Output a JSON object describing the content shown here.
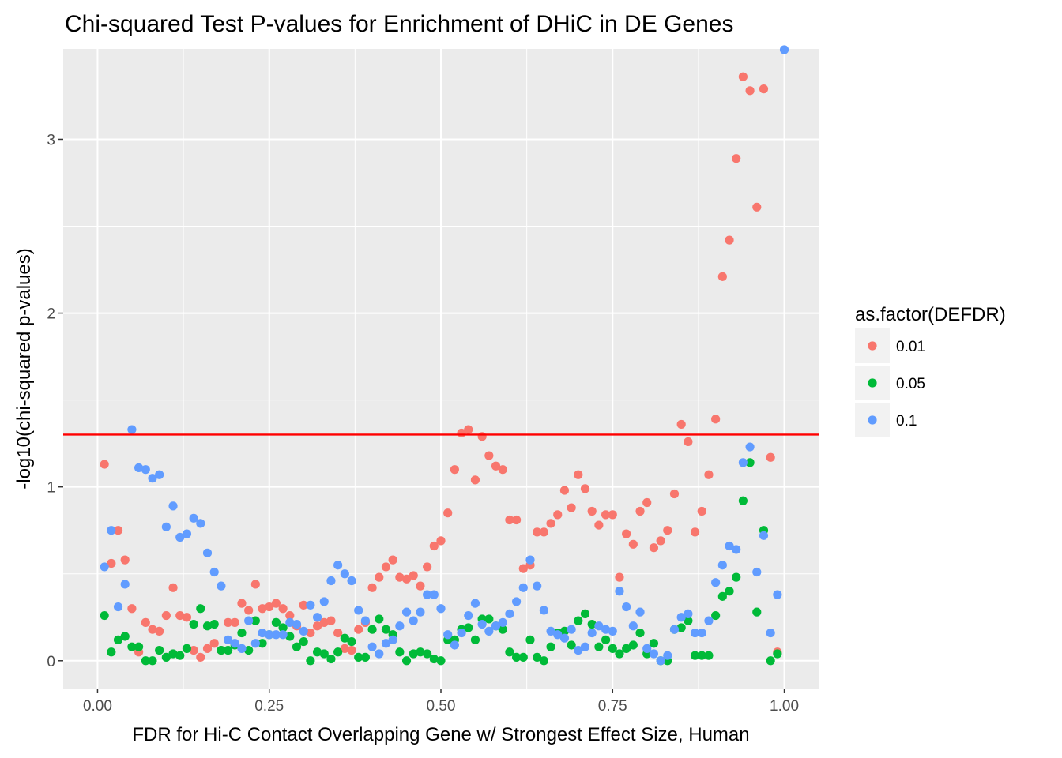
{
  "chart_data": {
    "type": "scatter",
    "title": "Chi-squared Test P-values for Enrichment of DHiC in DE Genes",
    "xlabel": "FDR for Hi-C Contact Overlapping Gene w/ Strongest Effect Size, Human",
    "ylabel": "-log10(chi-squared p-values)",
    "xlim": [
      -0.05,
      1.05
    ],
    "ylim": [
      -0.16,
      3.52
    ],
    "x_ticks": [
      0,
      0.25,
      0.5,
      0.75,
      1
    ],
    "x_tick_labels": [
      "0.00",
      "0.25",
      "0.50",
      "0.75",
      "1.00"
    ],
    "y_ticks": [
      0,
      1,
      2,
      3
    ],
    "y_tick_labels": [
      "0",
      "1",
      "2",
      "3"
    ],
    "grid": true,
    "reference_line": {
      "y": 1.301,
      "color": "#ff0000"
    },
    "legend": {
      "title": "as.factor(DEFDR)",
      "position": "right",
      "entries": [
        "0.01",
        "0.05",
        "0.1"
      ]
    },
    "colors": [
      "#F8766D",
      "#00BA38",
      "#619CFF"
    ],
    "x": [
      0.01,
      0.02,
      0.03,
      0.04,
      0.05,
      0.06,
      0.07,
      0.08,
      0.09,
      0.1,
      0.11,
      0.12,
      0.13,
      0.14,
      0.15,
      0.16,
      0.17,
      0.18,
      0.19,
      0.2,
      0.21,
      0.22,
      0.23,
      0.24,
      0.25,
      0.26,
      0.27,
      0.28,
      0.29,
      0.3,
      0.31,
      0.32,
      0.33,
      0.34,
      0.35,
      0.36,
      0.37,
      0.38,
      0.39,
      0.4,
      0.41,
      0.42,
      0.43,
      0.44,
      0.45,
      0.46,
      0.47,
      0.48,
      0.49,
      0.5,
      0.51,
      0.52,
      0.53,
      0.54,
      0.55,
      0.56,
      0.57,
      0.58,
      0.59,
      0.6,
      0.61,
      0.62,
      0.63,
      0.64,
      0.65,
      0.66,
      0.67,
      0.68,
      0.69,
      0.7,
      0.71,
      0.72,
      0.73,
      0.74,
      0.75,
      0.76,
      0.77,
      0.78,
      0.79,
      0.8,
      0.81,
      0.82,
      0.83,
      0.84,
      0.85,
      0.86,
      0.87,
      0.88,
      0.89,
      0.9,
      0.91,
      0.92,
      0.93,
      0.94,
      0.95,
      0.96,
      0.97,
      0.98,
      0.99,
      1.0
    ],
    "series": [
      {
        "name": "0.01",
        "values": [
          1.13,
          0.56,
          0.75,
          0.58,
          0.3,
          0.05,
          0.22,
          0.18,
          0.17,
          0.26,
          0.42,
          0.26,
          0.25,
          0.06,
          0.02,
          0.07,
          0.1,
          0.06,
          0.22,
          0.22,
          0.33,
          0.29,
          0.44,
          0.3,
          0.31,
          0.33,
          0.3,
          0.26,
          0.2,
          0.32,
          0.16,
          0.2,
          0.22,
          0.23,
          0.16,
          0.07,
          0.06,
          0.18,
          0.22,
          0.42,
          0.48,
          0.54,
          0.58,
          0.48,
          0.47,
          0.49,
          0.43,
          0.54,
          0.66,
          0.69,
          0.85,
          1.1,
          1.31,
          1.33,
          1.04,
          1.29,
          1.18,
          1.12,
          1.1,
          0.81,
          0.81,
          0.53,
          0.55,
          0.74,
          0.74,
          0.79,
          0.84,
          0.98,
          0.88,
          1.07,
          0.99,
          0.86,
          0.78,
          0.84,
          0.84,
          0.48,
          0.73,
          0.67,
          0.86,
          0.91,
          0.65,
          0.69,
          0.75,
          0.96,
          1.36,
          1.26,
          0.74,
          0.86,
          1.07,
          1.39,
          2.21,
          2.42,
          2.89,
          3.36,
          3.28,
          2.61,
          3.29,
          1.17,
          0.05,
          null
        ]
      },
      {
        "name": "0.05",
        "values": [
          0.26,
          0.05,
          0.12,
          0.14,
          0.08,
          0.08,
          0.0,
          0.0,
          0.06,
          0.02,
          0.04,
          0.03,
          0.07,
          0.21,
          0.3,
          0.2,
          0.21,
          0.06,
          0.06,
          0.09,
          0.16,
          0.06,
          0.23,
          0.1,
          0.15,
          0.22,
          0.19,
          0.14,
          0.08,
          0.11,
          0.0,
          0.05,
          0.04,
          0.01,
          0.05,
          0.13,
          0.11,
          0.02,
          0.02,
          0.18,
          0.24,
          0.18,
          0.15,
          0.05,
          0.0,
          0.04,
          0.05,
          0.04,
          0.01,
          0.0,
          0.12,
          0.12,
          0.18,
          0.19,
          0.12,
          0.24,
          0.24,
          0.2,
          0.18,
          0.05,
          0.02,
          0.02,
          0.12,
          0.02,
          0.0,
          0.08,
          0.16,
          0.17,
          0.09,
          0.23,
          0.27,
          0.21,
          0.08,
          0.12,
          0.07,
          0.04,
          0.07,
          0.09,
          0.16,
          0.04,
          0.1,
          0.0,
          0.0,
          0.18,
          0.19,
          0.23,
          0.03,
          0.03,
          0.03,
          0.26,
          0.37,
          0.4,
          0.48,
          0.92,
          1.14,
          0.28,
          0.75,
          0.0,
          0.04,
          null
        ]
      },
      {
        "name": "0.1",
        "values": [
          0.54,
          0.75,
          0.31,
          0.44,
          1.33,
          1.11,
          1.1,
          1.05,
          1.07,
          0.77,
          0.89,
          0.71,
          0.73,
          0.82,
          0.79,
          0.62,
          0.51,
          0.43,
          0.12,
          0.1,
          0.07,
          0.23,
          0.1,
          0.16,
          0.15,
          0.15,
          0.15,
          0.22,
          0.21,
          0.17,
          0.32,
          0.25,
          0.34,
          0.46,
          0.55,
          0.5,
          0.46,
          0.29,
          0.23,
          0.08,
          0.04,
          0.1,
          0.12,
          0.2,
          0.28,
          0.23,
          0.28,
          0.38,
          0.38,
          0.3,
          0.15,
          0.09,
          0.16,
          0.26,
          0.33,
          0.21,
          0.17,
          0.2,
          0.22,
          0.27,
          0.34,
          0.42,
          0.58,
          0.43,
          0.29,
          0.17,
          0.15,
          0.13,
          0.18,
          0.06,
          0.08,
          0.16,
          0.2,
          0.18,
          0.17,
          0.4,
          0.31,
          0.2,
          0.28,
          0.07,
          0.04,
          0.0,
          0.03,
          0.18,
          0.25,
          0.27,
          0.16,
          0.16,
          0.23,
          0.45,
          0.55,
          0.66,
          0.64,
          1.14,
          1.23,
          0.51,
          0.72,
          0.16,
          0.38,
          3.53
        ]
      }
    ]
  }
}
